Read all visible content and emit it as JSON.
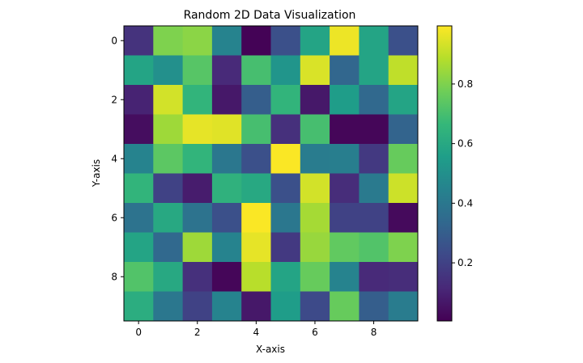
{
  "chart_data": {
    "type": "heatmap",
    "title": "Random 2D Data Visualization",
    "xlabel": "X-axis",
    "ylabel": "Y-axis",
    "colormap": "viridis",
    "xticks": [
      "0",
      "2",
      "4",
      "6",
      "8"
    ],
    "yticks": [
      "0",
      "2",
      "4",
      "6",
      "8"
    ],
    "colorbar_ticks": [
      "0.2",
      "0.4",
      "0.6",
      "0.8"
    ],
    "colorbar_range": [
      0.005,
      0.995
    ],
    "values": [
      [
        0.15,
        0.8,
        0.82,
        0.45,
        0.01,
        0.25,
        0.58,
        0.97,
        0.58,
        0.25
      ],
      [
        0.58,
        0.5,
        0.73,
        0.12,
        0.7,
        0.52,
        0.94,
        0.33,
        0.58,
        0.9
      ],
      [
        0.1,
        0.93,
        0.65,
        0.07,
        0.3,
        0.65,
        0.07,
        0.55,
        0.34,
        0.58
      ],
      [
        0.04,
        0.85,
        0.96,
        0.95,
        0.7,
        0.14,
        0.7,
        0.02,
        0.02,
        0.32
      ],
      [
        0.45,
        0.74,
        0.65,
        0.4,
        0.25,
        0.99,
        0.42,
        0.43,
        0.17,
        0.76
      ],
      [
        0.65,
        0.2,
        0.08,
        0.64,
        0.6,
        0.25,
        0.93,
        0.13,
        0.41,
        0.92
      ],
      [
        0.38,
        0.6,
        0.38,
        0.25,
        0.99,
        0.4,
        0.86,
        0.2,
        0.2,
        0.03
      ],
      [
        0.58,
        0.34,
        0.85,
        0.45,
        0.96,
        0.17,
        0.84,
        0.75,
        0.72,
        0.8
      ],
      [
        0.72,
        0.6,
        0.14,
        0.02,
        0.89,
        0.58,
        0.76,
        0.45,
        0.12,
        0.13
      ],
      [
        0.62,
        0.4,
        0.2,
        0.45,
        0.07,
        0.55,
        0.23,
        0.76,
        0.3,
        0.42
      ]
    ]
  }
}
